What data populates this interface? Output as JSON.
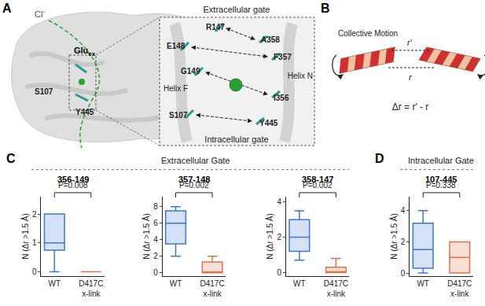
{
  "chart_data": [
    {
      "type": "box",
      "panel": "C",
      "section": "Extracellular Gate",
      "title": "356-149",
      "p_value": "P=0.008",
      "y_label": "N (Δr >1.5 Å)",
      "categories": [
        "WT",
        "D417C\nx-link"
      ],
      "boxes": [
        {
          "color": "#3b78d4",
          "min": 0,
          "q1": 0.75,
          "median": 1,
          "q3": 2,
          "max": 2
        },
        {
          "color": "#e4704a",
          "min": 0,
          "q1": 0,
          "median": 0,
          "q3": 0,
          "max": 0
        }
      ],
      "ylim": [
        -0.15,
        2.6
      ],
      "yticks": [
        0,
        1,
        2
      ]
    },
    {
      "type": "box",
      "panel": "C",
      "section": "Extracellular Gate",
      "title": "357-148",
      "p_value": "P=0.002",
      "y_label": "N (Δr >1.5 Å)",
      "categories": [
        "WT",
        "D417C\nx-link"
      ],
      "boxes": [
        {
          "color": "#3b78d4",
          "min": 2,
          "q1": 3.5,
          "median": 6,
          "q3": 7.5,
          "max": 8
        },
        {
          "color": "#e4704a",
          "min": 0,
          "q1": 0,
          "median": 0,
          "q3": 1.3,
          "max": 2
        }
      ],
      "ylim": [
        -0.4,
        9.2
      ],
      "yticks": [
        0,
        2,
        4,
        6,
        8
      ]
    },
    {
      "type": "box",
      "panel": "C",
      "section": "Extracellular Gate",
      "title": "358-147",
      "p_value": "P=0.002",
      "y_label": "N (Δr >1.5 Å)",
      "categories": [
        "WT",
        "D417C\nx-link"
      ],
      "boxes": [
        {
          "color": "#3b78d4",
          "min": 0.7,
          "q1": 1.2,
          "median": 2,
          "q3": 3,
          "max": 3.5
        },
        {
          "color": "#e4704a",
          "min": 0,
          "q1": 0,
          "median": 0,
          "q3": 0.3,
          "max": 0.8
        }
      ],
      "ylim": [
        -0.2,
        4.3
      ],
      "yticks": [
        0,
        2,
        4
      ]
    },
    {
      "type": "box",
      "panel": "D",
      "section": "Intracellular Gate",
      "title": "107-445",
      "p_value": "P=0.338",
      "y_label": "N (Δr >1.5 Å)",
      "categories": [
        "WT",
        "D417C\nx-link"
      ],
      "boxes": [
        {
          "color": "#3b78d4",
          "min": 0,
          "q1": 0.3,
          "median": 1.5,
          "q3": 3.2,
          "max": 4
        },
        {
          "color": "#e4704a",
          "min": 0,
          "q1": 0,
          "median": 1,
          "q3": 2,
          "max": 2
        }
      ],
      "ylim": [
        -0.2,
        4.9
      ],
      "yticks": [
        0,
        2,
        4
      ]
    }
  ],
  "panel_a": {
    "label": "A",
    "ion": "Cl⁻",
    "site": "Glu",
    "site_sub": "ex",
    "residues": [
      "S107",
      "Y445"
    ],
    "inset": {
      "top": "Extracellular gate",
      "bottom": "Intracellular gate",
      "helices": [
        "Helix F",
        "Helix N"
      ],
      "pairs": [
        [
          "R147",
          "A358"
        ],
        [
          "E148",
          "F357"
        ],
        [
          "G149",
          "I356"
        ],
        [
          "S107",
          "Y445"
        ]
      ]
    }
  },
  "panel_b": {
    "label": "B",
    "caption": "Collective Motion",
    "r_prime": "r′",
    "r": "r",
    "equation": "Δr = r′ - r"
  }
}
